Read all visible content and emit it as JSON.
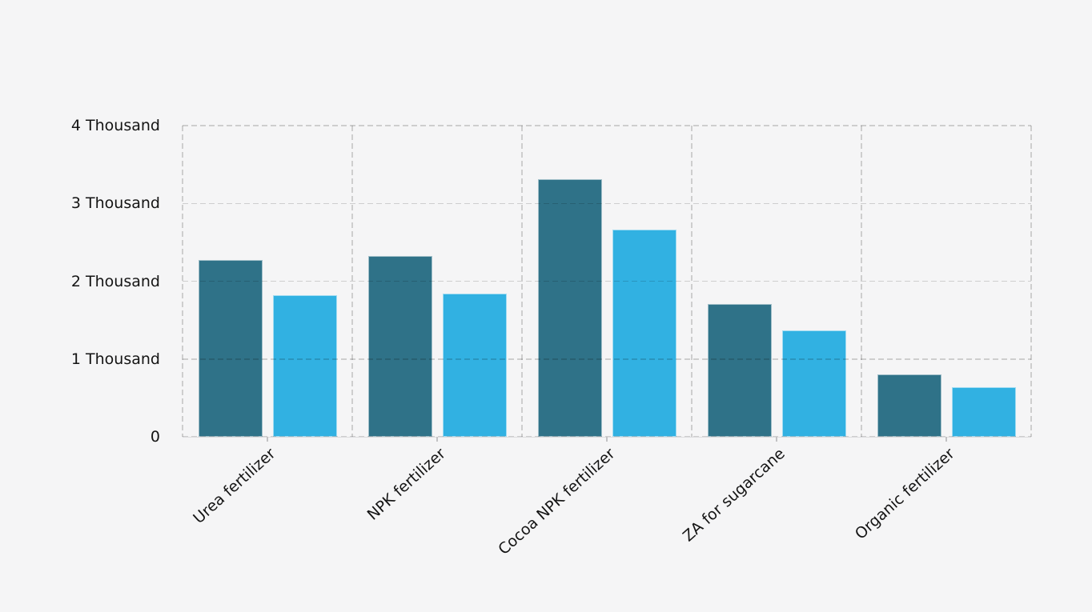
{
  "chart_data": {
    "type": "bar",
    "title": "",
    "xlabel": "",
    "ylabel": "",
    "categories": [
      "Urea fertilizer",
      "NPK fertilizer",
      "Cocoa NPK fertilizer",
      "ZA for sugarcane",
      "Organic fertilizer"
    ],
    "series": [
      {
        "name": "series-1",
        "color": "#2f7288",
        "values": [
          2270,
          2320,
          3310,
          1710,
          800
        ]
      },
      {
        "name": "series-2",
        "color": "#31b1e2",
        "values": [
          1820,
          1840,
          2660,
          1370,
          640
        ]
      }
    ],
    "ylim": [
      0,
      4000
    ],
    "yticks": [
      {
        "value": 0,
        "label": "0"
      },
      {
        "value": 1000,
        "label": "1 Thousand"
      },
      {
        "value": 2000,
        "label": "2 Thousand"
      },
      {
        "value": 3000,
        "label": "3 Thousand"
      },
      {
        "value": 4000,
        "label": "4 Thousand"
      }
    ],
    "grid": "dashed",
    "legend": "none"
  },
  "colors": {
    "background": "#f5f5f6",
    "gridline": "#c9c9cb",
    "axis_line": "#dcdcde",
    "text": "#141414",
    "series_dark": "#2f7288",
    "series_light": "#31b1e2"
  }
}
